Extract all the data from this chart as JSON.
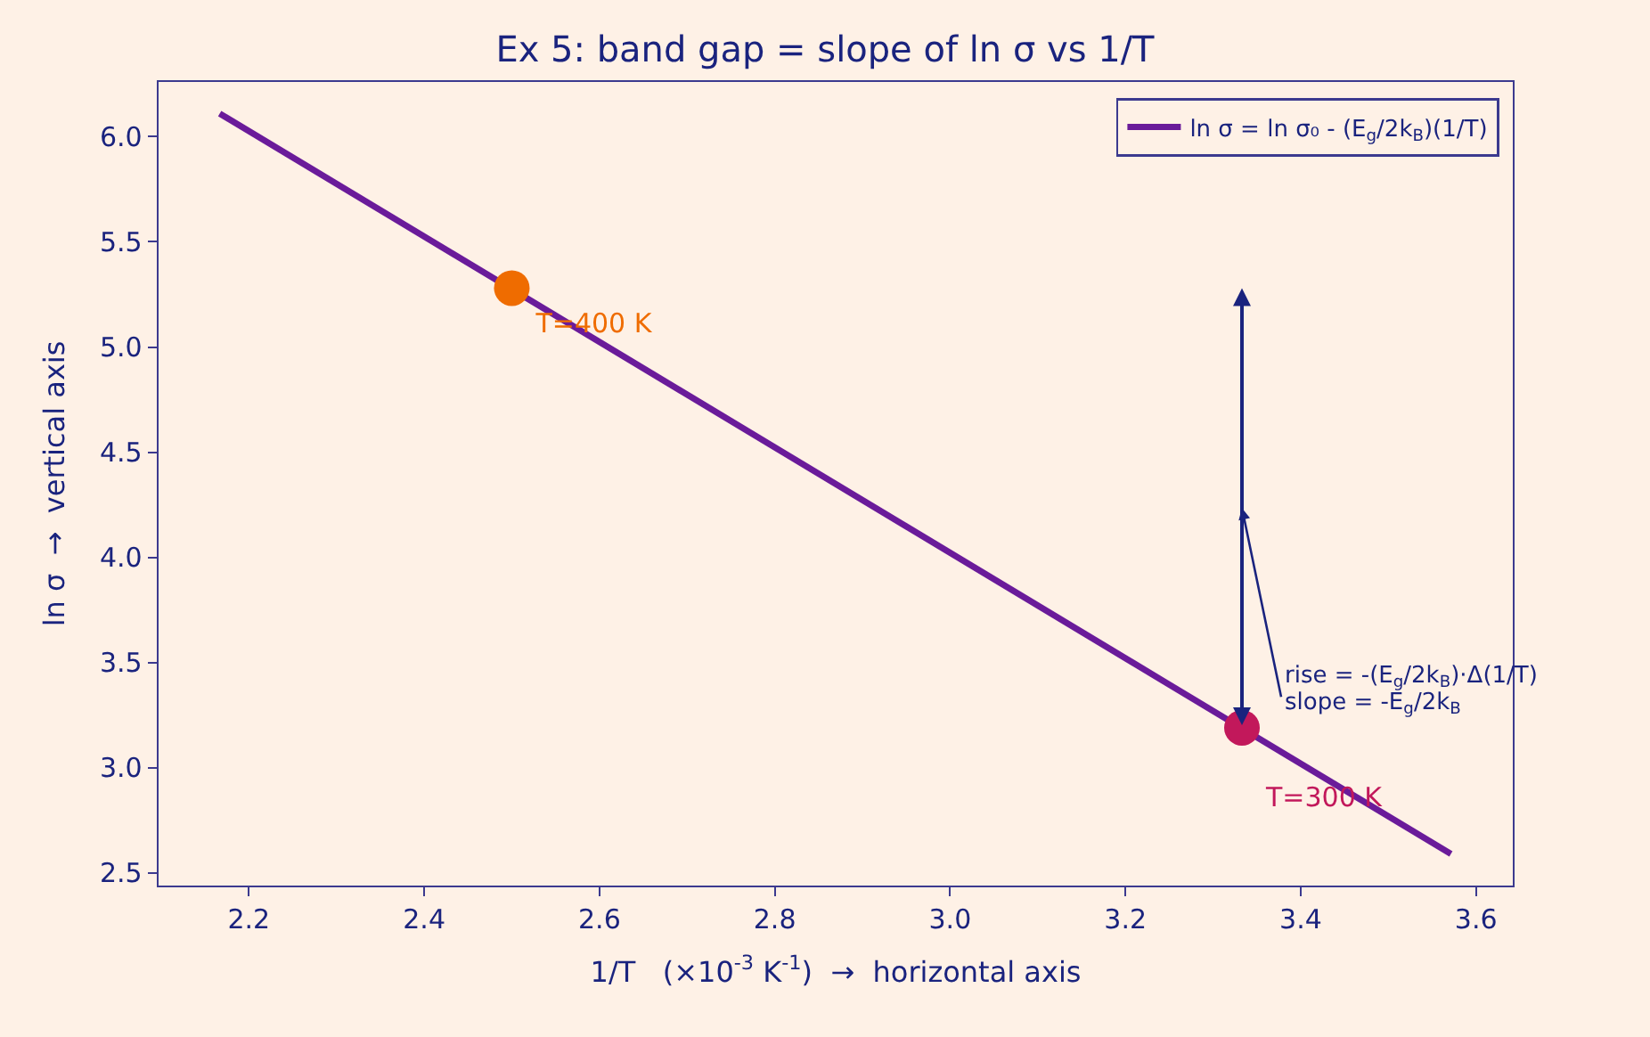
{
  "chart_data": {
    "type": "line",
    "title": "Ex 5: band gap = slope of ln σ vs 1/T",
    "xlabel": "1/T   (×10$^{-3}$ K$^{-1}$)  →  horizontal axis",
    "ylabel": "ln σ  →  vertical axis",
    "series": [
      {
        "name": "ln σ = ln σ₀ - (E$_{g}$/2k$_{B}$)(1/T)",
        "color": "#6a1b9a",
        "x": [
          2.1667,
          3.5714
        ],
        "values": [
          6.11,
          2.59
        ]
      },
      {
        "name": "T=400 K",
        "type": "scatter",
        "color": "#ef6c00",
        "x": [
          2.5
        ],
        "values": [
          5.28
        ]
      },
      {
        "name": "T=300 K",
        "type": "scatter",
        "color": "#c2185b",
        "x": [
          3.333
        ],
        "values": [
          3.19
        ]
      }
    ],
    "annotations": [
      "rise = -(E$_{g}$/2k$_{B}$)·Δ(1/T)",
      "slope = -E$_{g}$/2k$_{B}$"
    ],
    "xlim": [
      2.097,
      3.642
    ],
    "ylim": [
      2.44,
      6.26
    ],
    "xticks": [
      2.2,
      2.4,
      2.6,
      2.8,
      {
        "value": 3.0,
        "label": "3.0"
      },
      3.2,
      3.4,
      3.6
    ],
    "yticks": [
      2.5,
      {
        "value": 3.0,
        "label": "3.0"
      },
      3.5,
      {
        "value": 4.0,
        "label": "4.0"
      },
      4.5,
      {
        "value": 5.0,
        "label": "5.0"
      },
      5.5,
      {
        "value": 6.0,
        "label": "6.0"
      }
    ],
    "legend": "top right",
    "grid": false
  }
}
